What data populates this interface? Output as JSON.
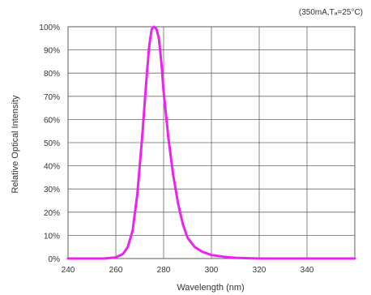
{
  "chart_data": {
    "type": "line",
    "title": "",
    "note": "(350mA,Tₐ=25°C)",
    "xlabel": "Wavelength (nm)",
    "ylabel": "Relative Optical Intensity",
    "xlim": [
      240,
      360
    ],
    "ylim": [
      0,
      100
    ],
    "x_ticks": [
      240,
      260,
      280,
      300,
      320,
      340
    ],
    "y_ticks": [
      0,
      10,
      20,
      30,
      40,
      50,
      60,
      70,
      80,
      90,
      100
    ],
    "y_tick_labels": [
      "0%",
      "10%",
      "20%",
      "30%",
      "40%",
      "50%",
      "60%",
      "70%",
      "80%",
      "90%",
      "100%"
    ],
    "grid": true,
    "series": [
      {
        "color": "#ee22ee",
        "x": [
          240,
          255,
          260,
          263,
          265,
          267,
          269,
          271,
          273,
          274,
          275,
          276,
          277,
          278,
          279,
          280,
          282,
          284,
          286,
          288,
          290,
          293,
          296,
          300,
          305,
          310,
          320,
          340,
          360
        ],
        "y": [
          0,
          0,
          0.5,
          2,
          5,
          12,
          28,
          52,
          80,
          92,
          99,
          100,
          99,
          95,
          85,
          72,
          52,
          36,
          24,
          15,
          9,
          5,
          3,
          1.5,
          0.8,
          0.3,
          0,
          0,
          0
        ]
      }
    ]
  }
}
